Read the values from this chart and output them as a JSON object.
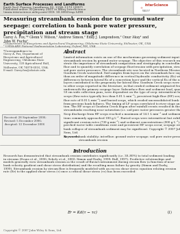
{
  "journal_line1": "Earth Surface Processes and Landforms",
  "journal_line2": "Earth Surf. Process. Landforms 32, 1158–1173 (2007)",
  "journal_line3": "Published online 30 January 2007 in Wiley InterScience",
  "journal_line4": "(www.interscience.wiley.com) DOI: 10.1002/esp.1490",
  "title": "Measuring streambank erosion due to ground water\nseepage: correlation to bank pore water pressure,\nprecipitation and stream stage",
  "authors": "Garey A. Fox,¹* Glenn V. Wilson,² Andrew Simon,² Eddy J. Langendoen,² Onur Akay¹ and\nJohn W. Fuchs¹",
  "affil1": "¹ Department of Biosystems and Agricultural Engineering, Oklahoma State University, Stillwater, OK, USA",
  "affil2": "² USDA-ARS National Sedimentation Laboratory, Oxford, MS, USA",
  "corr_title": "*Correspondence to:",
  "corr_text": "Garey A. Fox, Department of\nBiosystems and Agricultural\nEngineering, Oklahoma State\nUniversity, 120 Agricultural Hall,\nStillwater, OK 74078-6016, USA.\nE-mail: Garey.fox@okstate.edu",
  "received": "Received: 28 September 2006;\nRevised: 5 December 2006;\nAccepted: 12 December 2006",
  "abstract_title": "Abstract",
  "abstract_text": "Limited information exists on one of the mechanisms governing sediment input to streams:\nstreambank erosion by ground water seepage. The objective of this research was to demon-\nstrate the importance of streambank composition and stratigraphy in controlling seepage\nflow and to quantify correlation of seepage flow/erosion with precipitation, stream stage and\nsoil pore water pressures. The streambank site was located in Northern Mississippi in the\nGoodwin Creek watershed. Soil samples from layers on the streambank face suggested less\nthan an order of magnitude difference in vertical hydraulic conductivity (Ks) with depth, but\ndifferences between lateral Ks of a concretion layer and the vertical Ks of the underlying\nlayers contributed to the propensity for lateral flow. Goodwin Creek seeps were not similar\nto other seeps reported in the literature, in that eroded sediment originated from layers\nunderneath the primary seepage layer. Subsurface flow and sediment load, quantified using\n50 cm wide collection pans, were dependent on the type of seep: intermittent low-flow (LF)\nseeps (flow rates typically less than 0.01 L min⁻¹), persistent high-flow (HF) seeps (average\nflow rate of 0.01 L min⁻¹) and buried seeps, which eroded unconsolidated bank material\nfrom previous bank failures. The timing of LF seeps correlated to river stage and precipita-\ntion. The HF seeps at Goodwin Creek began after rainfall events resulted in the adjacent\nstreambanks reaching near saturation (i.e. soil pore water pressures greater than −8 kPa).\nSeep discharge from HF seeps reached a maximum of 14.1 L min⁻¹ and sediment concentra-\ntions commonly approached 100 g L⁻¹. Buried seeps were intermittent but exhibited the most\nsignificant erosion rates (730 g min⁻¹) and sediment concentrations (900 g L⁻¹). In cases where\nperched water table conditions exist and persistent HF seeps occur, seepage erosion and\nbank collapse of streambank sediment may be significant. Copyright © 2007 John Wiley &\nSons, Ltd.",
  "keywords_label": "Keywords:",
  "keywords_text": "bank stability; interflow; ground water seepage; soil pore water pressure;\nstreambank erosion",
  "intro_title": "Introduction",
  "intro_text": "Research has demonstrated that streambank erosion contributes significantly (i.e. 30–80%) to total sediment loading\nin streams (Evans et al., 2006; Sekely et al., 2002; Simon and Darby, 1999; Bull, 1997). Predictive relationships and\nmodels generally view streambank erosion as the result of fluvial entrainment during stream flow (a function of near-\nbank velocity gradient and shear stress distribution) and the resulting mass failure by gravity (Simon and Darby,\n1999). Streambank erosion by stream flow is frequently modeled with an excess shear stress equation relating erosion\nrate (Er) to the applied shear stress (τ) once a critical shear stress (τc) has been exceeded:",
  "equation": "Er = Kd(τ − τc)",
  "eq_number": "(1)",
  "copyright_text": "Copyright © 2007 John Wiley & Sons, Ltd.",
  "bg_color": "#f5f5f0",
  "text_color": "#2a2a2a",
  "header_color": "#1a1a1a",
  "journal_color": "#444444",
  "title_color": "#111111",
  "abstract_bg": "#f0f0eb",
  "box_bg": "#e8e8e3"
}
